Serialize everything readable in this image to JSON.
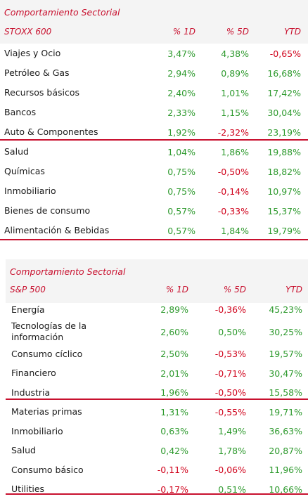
{
  "tables": [
    {
      "title": "Comportamiento Sectorial",
      "index": "STOXX 600",
      "col_1d": "% 1D",
      "col_5d": "% 5D",
      "col_ytd": "YTD",
      "rows": [
        {
          "name": "Viajes y Ocio",
          "d1": "3,47%",
          "d5": "4,38%",
          "ytd": "-0,65%"
        },
        {
          "name": "Petróleo & Gas",
          "d1": "2,94%",
          "d5": "0,89%",
          "ytd": "16,68%"
        },
        {
          "name": "Recursos básicos",
          "d1": "2,40%",
          "d5": "1,01%",
          "ytd": "17,42%"
        },
        {
          "name": "Bancos",
          "d1": "2,33%",
          "d5": "1,15%",
          "ytd": "30,04%"
        },
        {
          "name": "Auto & Componentes",
          "d1": "1,92%",
          "d5": "-2,32%",
          "ytd": "23,19%"
        },
        {
          "name": "Salud",
          "d1": "1,04%",
          "d5": "1,86%",
          "ytd": "19,88%"
        },
        {
          "name": "Químicas",
          "d1": "0,75%",
          "d5": "-0,50%",
          "ytd": "18,82%"
        },
        {
          "name": "Inmobiliario",
          "d1": "0,75%",
          "d5": "-0,14%",
          "ytd": "10,97%"
        },
        {
          "name": "Bienes de consumo",
          "d1": "0,57%",
          "d5": "-0,33%",
          "ytd": "15,37%"
        },
        {
          "name": "Alimentación & Bebidas",
          "d1": "0,57%",
          "d5": "1,84%",
          "ytd": "19,79%"
        }
      ]
    },
    {
      "title": "Comportamiento Sectorial",
      "index": "S&P 500",
      "col_1d": "% 1D",
      "col_5d": "% 5D",
      "col_ytd": "YTD",
      "rows": [
        {
          "name": "Energía",
          "d1": "2,89%",
          "d5": "-0,36%",
          "ytd": "45,23%"
        },
        {
          "name": "Tecnologías de la información",
          "d1": "2,60%",
          "d5": "0,50%",
          "ytd": "30,25%"
        },
        {
          "name": "Consumo cíclico",
          "d1": "2,50%",
          "d5": "-0,53%",
          "ytd": "19,57%"
        },
        {
          "name": "Financiero",
          "d1": "2,01%",
          "d5": "-0,71%",
          "ytd": "30,47%"
        },
        {
          "name": "Industria",
          "d1": "1,96%",
          "d5": "-0,50%",
          "ytd": "15,58%"
        },
        {
          "name": "Materias primas",
          "d1": "1,31%",
          "d5": "-0,55%",
          "ytd": "19,71%"
        },
        {
          "name": "Inmobiliario",
          "d1": "0,63%",
          "d5": "1,49%",
          "ytd": "36,63%"
        },
        {
          "name": "Salud",
          "d1": "0,42%",
          "d5": "1,78%",
          "ytd": "20,87%"
        },
        {
          "name": "Consumo básico",
          "d1": "-0,11%",
          "d5": "-0,06%",
          "ytd": "11,96%"
        },
        {
          "name": "Utilities",
          "d1": "-0,17%",
          "d5": "0,51%",
          "ytd": "10,66%"
        }
      ]
    }
  ],
  "colors": {
    "accent": "#c8102e",
    "positive": "#2e9a2e",
    "negative": "#d0021b",
    "header_bg": "#f4f4f4"
  }
}
